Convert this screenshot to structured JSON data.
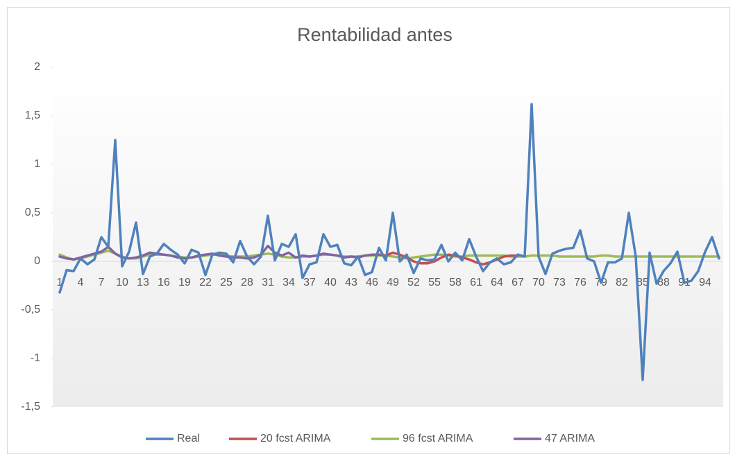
{
  "chart_data": {
    "type": "line",
    "title": "Rentabilidad  antes",
    "categories": [
      "1",
      null,
      null,
      "4",
      null,
      null,
      "7",
      null,
      null,
      "10",
      null,
      null,
      "13",
      null,
      null,
      "16",
      null,
      null,
      "19",
      null,
      null,
      "22",
      null,
      null,
      "25",
      null,
      null,
      "28",
      null,
      null,
      "31",
      null,
      null,
      "34",
      null,
      null,
      "37",
      null,
      null,
      "40",
      null,
      null,
      "43",
      null,
      null,
      "46",
      null,
      null,
      "49",
      null,
      null,
      "52",
      null,
      null,
      "55",
      null,
      null,
      "58",
      null,
      null,
      "61",
      null,
      null,
      "64",
      null,
      null,
      "67",
      null,
      null,
      "70",
      null,
      null,
      "73",
      null,
      null,
      "76",
      null,
      null,
      "79",
      null,
      null,
      "82",
      null,
      null,
      "85",
      null,
      null,
      "88",
      null,
      null,
      "91",
      null,
      null,
      "94",
      null,
      null
    ],
    "series": [
      {
        "name": "Real",
        "color": "#4f81bd",
        "values": [
          -0.32,
          -0.09,
          -0.1,
          0.03,
          -0.03,
          0.02,
          0.25,
          0.15,
          1.25,
          -0.05,
          0.1,
          0.4,
          -0.13,
          0.05,
          0.08,
          0.18,
          0.12,
          0.07,
          -0.02,
          0.12,
          0.09,
          -0.14,
          0.07,
          0.09,
          0.08,
          -0.01,
          0.21,
          0.05,
          -0.03,
          0.05,
          0.47,
          0.01,
          0.18,
          0.15,
          0.28,
          -0.17,
          -0.03,
          -0.01,
          0.28,
          0.15,
          0.17,
          -0.02,
          -0.04,
          0.05,
          -0.14,
          -0.11,
          0.14,
          0.01,
          0.5,
          0.0,
          0.07,
          -0.12,
          0.03,
          0.01,
          0.02,
          0.17,
          0.0,
          0.09,
          0.01,
          0.23,
          0.05,
          -0.1,
          -0.01,
          0.03,
          -0.03,
          -0.01,
          0.07,
          0.05,
          1.62,
          0.05,
          -0.13,
          0.08,
          0.11,
          0.13,
          0.14,
          0.32,
          0.03,
          0.0,
          -0.22,
          -0.01,
          -0.01,
          0.03,
          0.5,
          0.05,
          -1.22,
          0.09,
          -0.23,
          -0.1,
          -0.02,
          0.1,
          -0.22,
          -0.2,
          -0.1,
          0.1,
          0.25,
          0.03
        ]
      },
      {
        "name": "20 fcst ARIMA",
        "color": "#c0504d",
        "values": [
          null,
          null,
          null,
          null,
          null,
          null,
          null,
          null,
          null,
          null,
          null,
          null,
          null,
          null,
          null,
          null,
          null,
          null,
          null,
          null,
          null,
          null,
          null,
          null,
          null,
          null,
          null,
          null,
          null,
          null,
          null,
          null,
          null,
          null,
          null,
          null,
          null,
          null,
          null,
          null,
          null,
          null,
          null,
          null,
          null,
          null,
          0.07,
          0.06,
          0.09,
          0.07,
          0.04,
          0.0,
          -0.02,
          -0.02,
          0.0,
          0.04,
          0.07,
          0.06,
          0.04,
          0.02,
          -0.01,
          -0.03,
          -0.01,
          0.02,
          0.05,
          0.06,
          0.06,
          null,
          null,
          null,
          null,
          null,
          null,
          null,
          null,
          null,
          null,
          null,
          null,
          null,
          null,
          null,
          null,
          null,
          null,
          null,
          null,
          null,
          null,
          null,
          null,
          null,
          null,
          null,
          null,
          null
        ]
      },
      {
        "name": "96 fcst ARIMA",
        "color": "#9bbb59",
        "values": [
          0.07,
          0.04,
          0.02,
          0.03,
          0.05,
          0.07,
          0.09,
          0.11,
          0.08,
          0.05,
          0.03,
          0.03,
          0.05,
          0.07,
          0.07,
          0.07,
          0.06,
          0.05,
          0.04,
          0.04,
          0.05,
          0.06,
          0.07,
          0.07,
          0.06,
          0.05,
          0.05,
          0.05,
          0.06,
          0.07,
          0.08,
          0.07,
          0.05,
          0.04,
          0.04,
          0.05,
          0.05,
          0.06,
          0.07,
          0.07,
          0.06,
          0.05,
          0.05,
          0.05,
          0.06,
          0.06,
          0.06,
          0.06,
          0.05,
          0.04,
          0.03,
          0.04,
          0.05,
          0.06,
          0.07,
          0.07,
          0.06,
          0.05,
          0.05,
          0.06,
          0.06,
          0.06,
          0.06,
          0.06,
          0.06,
          0.05,
          0.05,
          0.05,
          0.06,
          0.06,
          0.06,
          0.06,
          0.05,
          0.05,
          0.05,
          0.05,
          0.05,
          0.05,
          0.06,
          0.06,
          0.05,
          0.05,
          0.05,
          0.05,
          0.05,
          0.05,
          0.05,
          0.05,
          0.05,
          0.05,
          0.05,
          0.05,
          0.05,
          0.05,
          0.05,
          0.05
        ]
      },
      {
        "name": "47 ARIMA",
        "color": "#8064a2",
        "values": [
          0.05,
          0.03,
          0.02,
          0.04,
          0.06,
          0.08,
          0.1,
          0.15,
          0.08,
          0.04,
          0.03,
          0.04,
          0.06,
          0.09,
          0.08,
          0.07,
          0.06,
          0.04,
          0.03,
          0.04,
          0.06,
          0.07,
          0.08,
          0.06,
          0.05,
          0.04,
          0.04,
          0.03,
          0.04,
          0.07,
          0.16,
          0.09,
          0.06,
          0.09,
          0.04,
          0.06,
          0.05,
          0.06,
          0.08,
          0.07,
          0.06,
          0.04,
          0.05,
          0.04,
          0.06,
          0.07,
          0.07,
          null,
          null,
          null,
          null,
          null,
          null,
          null,
          null,
          null,
          null,
          null,
          null,
          null,
          null,
          null,
          null,
          null,
          null,
          null,
          null,
          null,
          null,
          null,
          null,
          null,
          null,
          null,
          null,
          null,
          null,
          null,
          null,
          null,
          null,
          null,
          null,
          null,
          null,
          null,
          null,
          null,
          null,
          null,
          null,
          null,
          null,
          null,
          null,
          null
        ]
      }
    ],
    "ylim": [
      -1.5,
      2
    ],
    "yticks": [
      {
        "value": -1.5,
        "label": "-1,5"
      },
      -1,
      {
        "value": -0.5,
        "label": "-0,5"
      },
      0,
      {
        "value": 0.5,
        "label": "0,5"
      },
      1,
      {
        "value": 1.5,
        "label": "1,5"
      },
      2
    ],
    "legend": "bottom"
  }
}
